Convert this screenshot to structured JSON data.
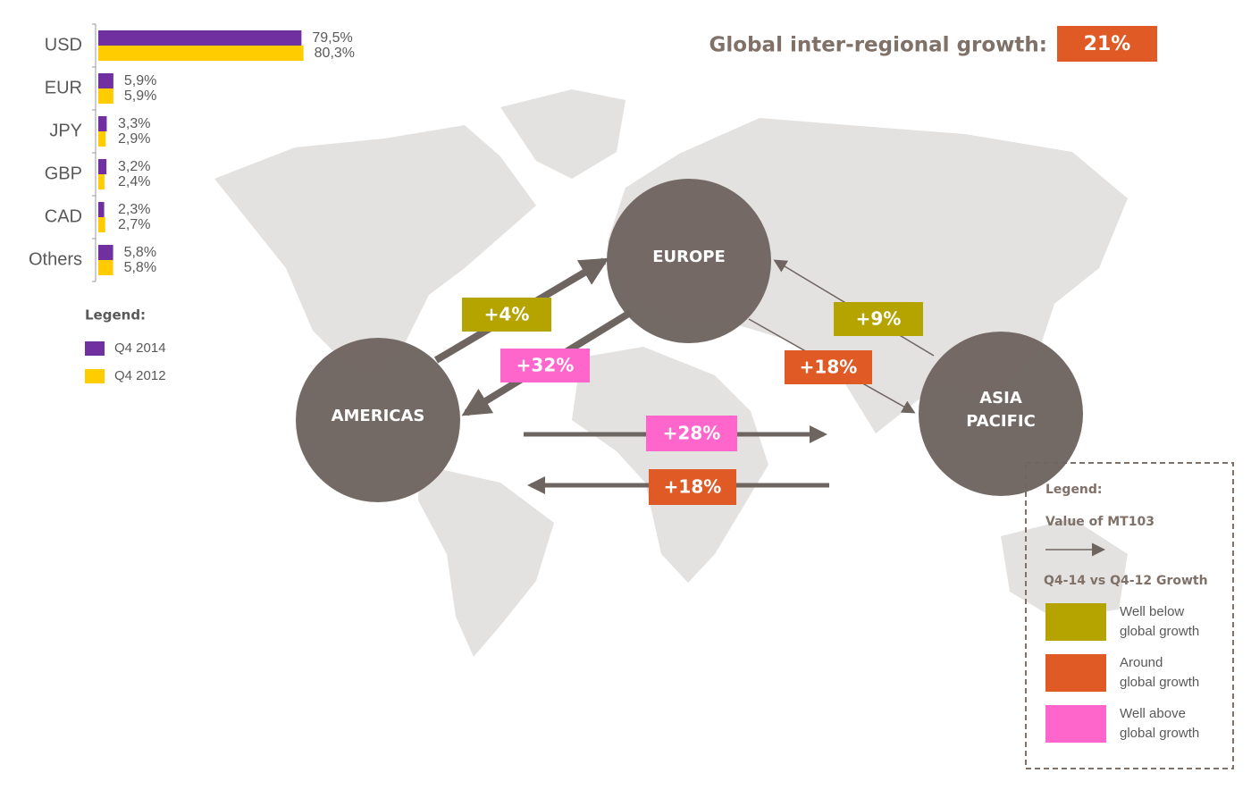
{
  "chart_data": {
    "type": "hbar",
    "categories": [
      "USD",
      "EUR",
      "JPY",
      "GBP",
      "CAD",
      "Others"
    ],
    "series": [
      {
        "name": "Q4 2014",
        "color": "#7030a0",
        "values": [
          79.5,
          5.9,
          3.3,
          3.2,
          2.3,
          5.8
        ],
        "value_labels": [
          "79,5%",
          "5,9%",
          "3,3%",
          "3,2%",
          "2,3%",
          "5,8%"
        ]
      },
      {
        "name": "Q4 2012",
        "color": "#ffcc00",
        "values": [
          80.3,
          5.9,
          2.9,
          2.4,
          2.7,
          5.8
        ],
        "value_labels": [
          "80,3%",
          "5,9%",
          "2,9%",
          "2,4%",
          "2,7%",
          "5,8%"
        ]
      }
    ],
    "xlim": [
      0,
      100
    ],
    "legend_title": "Legend:"
  },
  "header": {
    "title": "Global inter-regional growth:",
    "value": "21%",
    "color": "#e05a26"
  },
  "regions": [
    {
      "label": [
        "EUROPE"
      ]
    },
    {
      "label": [
        "AMERICAS"
      ]
    },
    {
      "label": [
        "ASIA",
        "PACIFIC"
      ]
    }
  ],
  "flows": [
    {
      "label": "+4%",
      "color": "#b5a300"
    },
    {
      "label": "+32%",
      "color": "#ff66cc"
    },
    {
      "label": "+9%",
      "color": "#b5a300"
    },
    {
      "label": "+18%",
      "color": "#e05a26"
    },
    {
      "label": "+28%",
      "color": "#ff66cc"
    },
    {
      "label": "+18%",
      "color": "#e05a26"
    }
  ],
  "legend": {
    "title": "Legend:",
    "arrow_label": "Value of MT103",
    "growth_title": "Q4-14 vs Q4-12 Growth",
    "items": [
      {
        "label": [
          "Well below",
          "global growth"
        ],
        "color": "#b5a300"
      },
      {
        "label": [
          "Around",
          "global growth"
        ],
        "color": "#e05a26"
      },
      {
        "label": [
          "Well above",
          "global growth"
        ],
        "color": "#ff66cc"
      }
    ]
  }
}
